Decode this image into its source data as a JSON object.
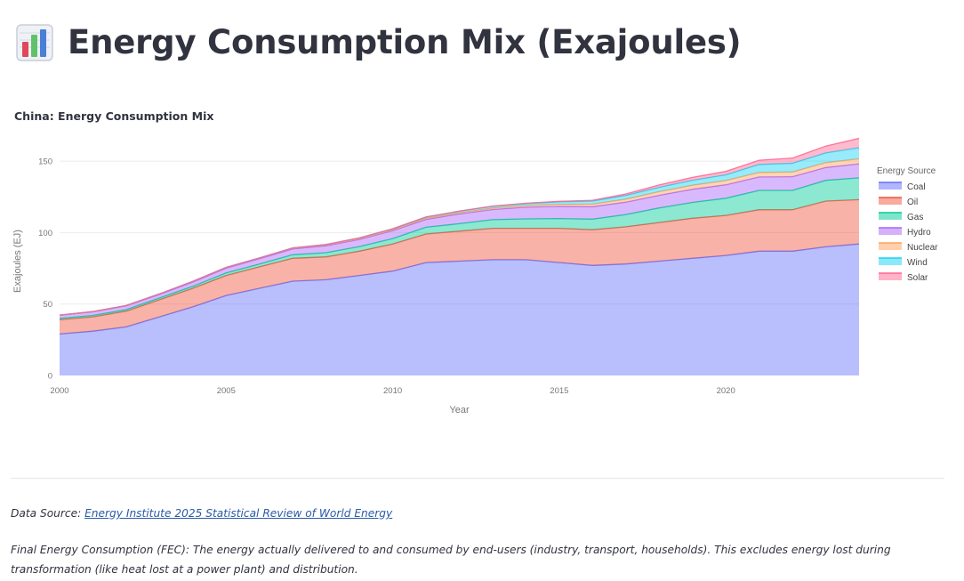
{
  "page": {
    "title": "Energy Consumption Mix (Exajoules)",
    "app_icon": "bar-chart-icon"
  },
  "chart_data": {
    "type": "area",
    "stacked": true,
    "title": "China: Energy Consumption Mix",
    "xlabel": "Year",
    "ylabel": "Exajoules (EJ)",
    "xlim": [
      2000,
      2024
    ],
    "ylim": [
      0,
      160
    ],
    "xticks": [
      2000,
      2005,
      2010,
      2015,
      2020
    ],
    "yticks": [
      0,
      50,
      100,
      150
    ],
    "grid": true,
    "legend": {
      "title": "Energy Source",
      "placement": "right"
    },
    "x": [
      2000,
      2001,
      2002,
      2003,
      2004,
      2005,
      2006,
      2007,
      2008,
      2009,
      2010,
      2011,
      2012,
      2013,
      2014,
      2015,
      2016,
      2017,
      2018,
      2019,
      2020,
      2021,
      2022,
      2023,
      2024
    ],
    "series": [
      {
        "name": "Coal",
        "color": "#636efa",
        "values": [
          29,
          31,
          34,
          41,
          48,
          56,
          61,
          66,
          67,
          70,
          73,
          79,
          80,
          81,
          81,
          79,
          77,
          78,
          80,
          82,
          84,
          87,
          87,
          90,
          92
        ]
      },
      {
        "name": "Oil",
        "color": "#ef553b",
        "values": [
          10,
          10,
          11,
          12,
          13,
          14,
          15,
          16,
          16,
          17,
          19,
          20,
          21,
          22,
          22,
          24,
          25,
          26,
          27,
          28,
          28,
          29,
          29,
          32,
          31
        ]
      },
      {
        "name": "Gas",
        "color": "#00cc96",
        "values": [
          0.9,
          1.0,
          1.1,
          1.2,
          1.4,
          1.7,
          2.0,
          2.5,
          2.9,
          3.2,
          3.8,
          4.7,
          5.2,
          6.0,
          6.6,
          6.8,
          7.4,
          8.6,
          10.2,
          11.1,
          12.0,
          13.5,
          13.5,
          14.5,
          15.3
        ]
      },
      {
        "name": "Hydro",
        "color": "#ab63fa",
        "values": [
          2.2,
          2.5,
          2.6,
          2.5,
          3.0,
          3.4,
          3.7,
          4.1,
          4.9,
          5.0,
          5.5,
          5.5,
          6.8,
          7.1,
          8.1,
          8.5,
          8.7,
          8.7,
          8.9,
          9.2,
          9.4,
          9.4,
          9.6,
          9.0,
          9.8
        ]
      },
      {
        "name": "Nuclear",
        "color": "#ffa15a",
        "values": [
          0.15,
          0.16,
          0.24,
          0.4,
          0.46,
          0.48,
          0.5,
          0.56,
          0.62,
          0.63,
          0.66,
          0.78,
          0.87,
          1.0,
          1.2,
          1.5,
          1.8,
          2.1,
          2.5,
          2.8,
          3.0,
          3.2,
          3.3,
          3.4,
          3.5
        ]
      },
      {
        "name": "Wind",
        "color": "#19d3f3",
        "values": [
          0,
          0.01,
          0.01,
          0.02,
          0.03,
          0.04,
          0.05,
          0.1,
          0.2,
          0.4,
          0.7,
          0.9,
          1.1,
          1.3,
          1.4,
          1.7,
          2.1,
          2.6,
          3.1,
          3.5,
          4.0,
          5.6,
          6.1,
          6.8,
          7.8
        ]
      },
      {
        "name": "Solar",
        "color": "#ff6692",
        "values": [
          0,
          0,
          0,
          0,
          0,
          0,
          0,
          0,
          0,
          0,
          0.01,
          0.02,
          0.04,
          0.1,
          0.2,
          0.35,
          0.6,
          1.0,
          1.6,
          2.0,
          2.4,
          2.9,
          3.6,
          4.8,
          6.5
        ]
      }
    ]
  },
  "footer": {
    "source_prefix": "Data Source: ",
    "source_link": "Energy Institute 2025 Statistical Review of World Energy",
    "note": "Final Energy Consumption (FEC): The energy actually delivered to and consumed by end-users (industry, transport, households). This excludes energy lost during transformation (like heat lost at a power plant) and distribution."
  }
}
